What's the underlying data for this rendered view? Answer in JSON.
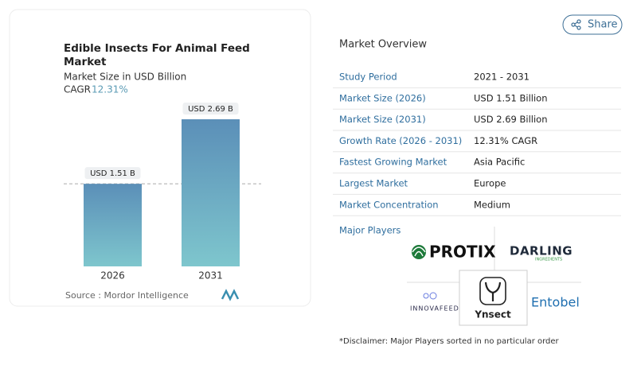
{
  "header": {
    "title": "Edible Insects For Animal Feed Market",
    "subtitle": "Market Size in USD Billion",
    "cagr_label": "CAGR",
    "cagr_value": "12.31%"
  },
  "chart_data": {
    "type": "bar",
    "categories": [
      "2026",
      "2031"
    ],
    "values": [
      1.51,
      2.69
    ],
    "value_labels": [
      "USD 1.51 B",
      "USD 2.69 B"
    ],
    "colors": [
      "#5b8fb8",
      "#7ec6cd"
    ]
  },
  "source": "Source :  Mordor Intelligence",
  "share": "Share",
  "overview": {
    "title": "Market Overview",
    "rows": [
      [
        "Study Period",
        "2021 - 2031"
      ],
      [
        "Market Size (2026)",
        "USD 1.51 Billion"
      ],
      [
        "Market Size (2031)",
        "USD 2.69 Billion"
      ],
      [
        "Growth Rate (2026 - 2031)",
        "12.31% CAGR"
      ],
      [
        "Fastest Growing Market",
        "Asia Pacific"
      ],
      [
        "Largest Market",
        "Europe"
      ],
      [
        "Market Concentration",
        "Medium"
      ]
    ]
  },
  "players": {
    "title": "Major Players",
    "items": [
      {
        "name": "PROTIX"
      },
      {
        "name": "DARLING",
        "sub": "INGREDIENTS"
      },
      {
        "name": "INNOVAFEED"
      },
      {
        "name": "Ynsect"
      },
      {
        "name": "Entobel"
      }
    ]
  },
  "disclaimer": "*Disclaimer: Major Players sorted in no particular order"
}
